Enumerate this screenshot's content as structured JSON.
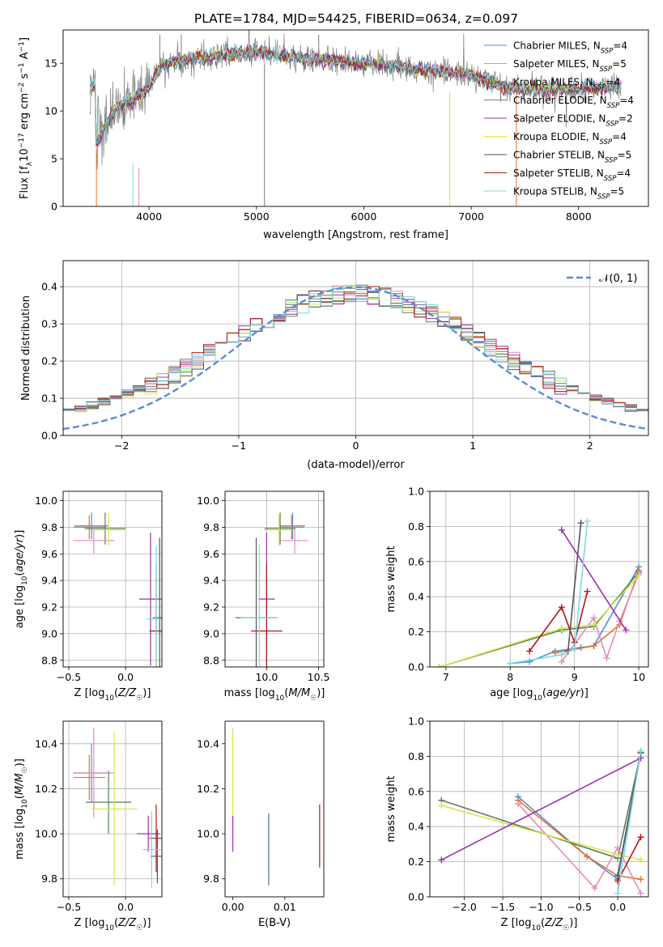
{
  "figure": {
    "title": "PLATE=1784, MJD=54425, FIBERID=0634, z=0.097"
  },
  "series_colors": {
    "Chabrier MILES": "#4a90d9",
    "Salpeter MILES": "#e8722a",
    "Kroupa MILES": "#5a7d5a",
    "Chabrier ELODIE": "#7b7b7b",
    "Salpeter ELODIE": "#9b30b0",
    "Kroupa ELODIE": "#d4e84a",
    "Chabrier STELIB": "#555555",
    "Salpeter STELIB": "#b01818",
    "Kroupa STELIB": "#7fd8e0",
    "pink": "#e88ab8"
  },
  "chart_data": [
    {
      "id": "spectrum",
      "type": "line",
      "title": "PLATE=1784, MJD=54425, FIBERID=0634, z=0.097",
      "xlabel": "wavelength [Angstrom, rest frame]",
      "ylabel": "Flux [f_λ 10^-17 erg cm^-2 s^-1 A^-1]",
      "xlim": [
        3200,
        8650
      ],
      "ylim": [
        0,
        18.5
      ],
      "xticks": [
        4000,
        5000,
        6000,
        7000,
        8000
      ],
      "yticks": [
        0,
        5,
        10,
        15
      ],
      "legend_position": "top-right",
      "legend": [
        {
          "main": "Chabrier MILES, N",
          "sub": "SSP",
          "tail": "=4",
          "color": "#4a90d9"
        },
        {
          "main": "Salpeter MILES, N",
          "sub": "SSP",
          "tail": "=5",
          "color": "#e88ab8"
        },
        {
          "main": "Kroupa MILES, N",
          "sub": "SSP",
          "tail": "=4",
          "color": "#5a7d5a"
        },
        {
          "main": "Chabrier ELODIE, N",
          "sub": "SSP",
          "tail": "=4",
          "color": "#7b7b7b"
        },
        {
          "main": "Salpeter ELODIE, N",
          "sub": "SSP",
          "tail": "=2",
          "color": "#9b30b0"
        },
        {
          "main": "Kroupa ELODIE, N",
          "sub": "SSP",
          "tail": "=4",
          "color": "#d4e84a"
        },
        {
          "main": "Chabrier STELIB, N",
          "sub": "SSP",
          "tail": "=5",
          "color": "#555555"
        },
        {
          "main": "Salpeter STELIB, N",
          "sub": "SSP",
          "tail": "=4",
          "color": "#b01818"
        },
        {
          "main": "Kroupa STELIB, N",
          "sub": "SSP",
          "tail": "=5",
          "color": "#7fd8e0"
        }
      ],
      "continuum": {
        "x": [
          3500,
          3600,
          3700,
          3800,
          3900,
          4000,
          4100,
          4200,
          4400,
          4600,
          4800,
          5000,
          5200,
          5500,
          5800,
          6100,
          6400,
          6700,
          7000,
          7300,
          7600,
          8000,
          8400
        ],
        "y": [
          6.5,
          8.5,
          10.5,
          11.0,
          11.5,
          12.5,
          14.5,
          15.0,
          15.5,
          15.8,
          16.0,
          16.2,
          15.8,
          15.5,
          15.2,
          15.0,
          14.5,
          14.2,
          13.8,
          12.5,
          12.2,
          12.3,
          12.6
        ]
      }
    },
    {
      "id": "residuals",
      "type": "line",
      "xlabel": "(data-model)/error",
      "ylabel": "Normed distribution",
      "xlim": [
        -2.5,
        2.5
      ],
      "ylim": [
        0,
        0.47
      ],
      "xticks": [
        -2,
        -1,
        0,
        1,
        2
      ],
      "yticks": [
        0.0,
        0.1,
        0.2,
        0.3,
        0.4
      ],
      "grid": true,
      "legend_position": "top-right",
      "reference_label": "𝒩(0, 1)",
      "reference_color": "#5b8bd6",
      "bin_width": 0.1
    },
    {
      "id": "Z-age",
      "type": "scatter",
      "xlabel": "Z [log10(Z/Z☉)]",
      "ylabel": "age  [log10(age/yr)]",
      "xlim": [
        -0.55,
        0.32
      ],
      "ylim": [
        8.75,
        10.07
      ],
      "xticks": [
        -0.5,
        0.0
      ],
      "yticks": [
        8.8,
        9.0,
        9.2,
        9.4,
        9.6,
        9.8,
        10.0
      ],
      "grid": true,
      "points": [
        {
          "x": -0.3,
          "y": 9.81,
          "xerr": 0.15,
          "yerr": 0.1,
          "color": "#4a90d9"
        },
        {
          "x": -0.32,
          "y": 9.8,
          "xerr": 0.14,
          "yerr": 0.09,
          "color": "#e8722a"
        },
        {
          "x": -0.18,
          "y": 9.79,
          "xerr": 0.18,
          "yerr": 0.12,
          "color": "#5a7d5a"
        },
        {
          "x": -0.28,
          "y": 9.7,
          "xerr": 0.18,
          "yerr": 0.1,
          "color": "#e88ab8"
        },
        {
          "x": -0.15,
          "y": 9.78,
          "xerr": 0.14,
          "yerr": 0.12,
          "color": "#d4e84a"
        },
        {
          "x": 0.22,
          "y": 9.26,
          "xerr": 0.1,
          "yerr": 0.5,
          "color": "#9b30b0"
        },
        {
          "x": 0.27,
          "y": 9.02,
          "xerr": 0.06,
          "yerr": 0.5,
          "color": "#b01818"
        },
        {
          "x": 0.3,
          "y": 9.12,
          "xerr": 0.06,
          "yerr": 0.6,
          "color": "#555555"
        },
        {
          "x": 0.27,
          "y": 9.11,
          "xerr": 0.09,
          "yerr": 0.55,
          "color": "#7fd8e0"
        }
      ]
    },
    {
      "id": "mass-age",
      "type": "scatter",
      "xlabel": "mass [log10(M/M☉)]",
      "ylabel": "",
      "xlim": [
        9.6,
        10.55
      ],
      "ylim": [
        8.75,
        10.07
      ],
      "xticks": [
        10.0,
        10.5
      ],
      "yticks": [
        8.8,
        9.0,
        9.2,
        9.4,
        9.6,
        9.8,
        10.0
      ],
      "grid": true,
      "points": [
        {
          "x": 10.25,
          "y": 9.81,
          "xerr": 0.12,
          "yerr": 0.1,
          "color": "#4a90d9"
        },
        {
          "x": 10.24,
          "y": 9.8,
          "xerr": 0.12,
          "yerr": 0.09,
          "color": "#e8722a"
        },
        {
          "x": 10.13,
          "y": 9.79,
          "xerr": 0.15,
          "yerr": 0.12,
          "color": "#5a7d5a"
        },
        {
          "x": 10.27,
          "y": 9.7,
          "xerr": 0.13,
          "yerr": 0.1,
          "color": "#e88ab8"
        },
        {
          "x": 10.12,
          "y": 9.78,
          "xerr": 0.15,
          "yerr": 0.12,
          "color": "#d4e84a"
        },
        {
          "x": 10.0,
          "y": 9.26,
          "xerr": 0.08,
          "yerr": 0.5,
          "color": "#9b30b0"
        },
        {
          "x": 10.0,
          "y": 9.02,
          "xerr": 0.15,
          "yerr": 0.5,
          "color": "#b01818"
        },
        {
          "x": 9.9,
          "y": 9.12,
          "xerr": 0.2,
          "yerr": 0.6,
          "color": "#555555"
        },
        {
          "x": 9.93,
          "y": 9.12,
          "xerr": 0.18,
          "yerr": 0.55,
          "color": "#7fd8e0"
        }
      ]
    },
    {
      "id": "age-weight",
      "type": "line",
      "xlabel": "age  [log10(age/yr)]",
      "ylabel": "mass weight",
      "xlim": [
        6.75,
        10.15
      ],
      "ylim": [
        0,
        1.0
      ],
      "xticks": [
        7,
        8,
        9,
        10
      ],
      "yticks": [
        0.0,
        0.2,
        0.4,
        0.6,
        0.8,
        1.0
      ],
      "grid": true,
      "series": [
        {
          "color": "#4a90d9",
          "x": [
            8.0,
            8.3,
            8.7,
            9.1,
            9.3,
            10.0
          ],
          "y": [
            0.02,
            0.03,
            0.09,
            0.11,
            0.12,
            0.57
          ]
        },
        {
          "color": "#e8722a",
          "x": [
            8.7,
            9.0,
            9.3,
            9.7,
            10.0
          ],
          "y": [
            0.08,
            0.1,
            0.12,
            0.24,
            0.55
          ]
        },
        {
          "color": "#5a7d5a",
          "x": [
            6.9,
            8.8,
            9.3,
            10.0
          ],
          "y": [
            0.0,
            0.21,
            0.23,
            0.54
          ]
        },
        {
          "color": "#e88ab8",
          "x": [
            8.8,
            9.3,
            9.5,
            9.7,
            10.0
          ],
          "y": [
            0.03,
            0.28,
            0.05,
            0.26,
            0.53
          ]
        },
        {
          "color": "#d4e84a",
          "x": [
            6.9,
            8.8,
            9.3,
            10.0
          ],
          "y": [
            0.0,
            0.22,
            0.24,
            0.52
          ]
        },
        {
          "color": "#9b30b0",
          "x": [
            8.8,
            9.8
          ],
          "y": [
            0.78,
            0.21
          ]
        },
        {
          "color": "#b01818",
          "x": [
            8.3,
            8.8,
            9.0,
            9.2
          ],
          "y": [
            0.09,
            0.34,
            0.14,
            0.43
          ]
        },
        {
          "color": "#555555",
          "x": [
            8.9,
            9.1
          ],
          "y": [
            0.09,
            0.82
          ]
        },
        {
          "color": "#7fd8e0",
          "x": [
            8.0,
            8.8,
            9.0,
            9.2
          ],
          "y": [
            0.02,
            0.07,
            0.1,
            0.83
          ]
        }
      ]
    },
    {
      "id": "Z-mass",
      "type": "scatter",
      "xlabel": "Z [log10(Z/Z☉)]",
      "ylabel": "mass [log10(M/M☉)]",
      "xlim": [
        -0.55,
        0.32
      ],
      "ylim": [
        9.72,
        10.5
      ],
      "xticks": [
        -0.5,
        0.0
      ],
      "yticks": [
        9.8,
        10.0,
        10.2,
        10.4
      ],
      "grid": true,
      "points": [
        {
          "x": -0.3,
          "y": 10.27,
          "xerr": 0.16,
          "yerr": 0.13,
          "color": "#4a90d9"
        },
        {
          "x": -0.32,
          "y": 10.25,
          "xerr": 0.14,
          "yerr": 0.1,
          "color": "#e8722a"
        },
        {
          "x": -0.15,
          "y": 10.14,
          "xerr": 0.2,
          "yerr": 0.14,
          "color": "#5a7d5a"
        },
        {
          "x": -0.28,
          "y": 10.27,
          "xerr": 0.18,
          "yerr": 0.2,
          "color": "#e88ab8"
        },
        {
          "x": -0.1,
          "y": 10.11,
          "xerr": 0.2,
          "yerr": 0.34,
          "color": "#d4e84a"
        },
        {
          "x": 0.2,
          "y": 10.0,
          "xerr": 0.1,
          "yerr": 0.08,
          "color": "#9b30b0"
        },
        {
          "x": 0.27,
          "y": 9.98,
          "xerr": 0.06,
          "yerr": 0.15,
          "color": "#b01818"
        },
        {
          "x": 0.28,
          "y": 9.9,
          "xerr": 0.06,
          "yerr": 0.12,
          "color": "#555555"
        },
        {
          "x": 0.23,
          "y": 9.93,
          "xerr": 0.08,
          "yerr": 0.17,
          "color": "#7fd8e0"
        }
      ]
    },
    {
      "id": "EBV-mass",
      "type": "scatter",
      "xlabel": "E(B-V)",
      "ylabel": "",
      "xlim": [
        -0.0015,
        0.0175
      ],
      "ylim": [
        9.72,
        10.5
      ],
      "xticks": [
        0.0,
        0.01
      ],
      "yticks": [
        9.8,
        10.0,
        10.2,
        10.4
      ],
      "points": [
        {
          "x": 0.0,
          "y": 10.25,
          "yerr": 0.22,
          "color": "#d4e84a"
        },
        {
          "x": 0.0,
          "y": 10.0,
          "yerr": 0.08,
          "color": "#9b30b0"
        },
        {
          "x": 0.0069,
          "y": 9.95,
          "yerr": 0.14,
          "color": "#7fd8e0"
        },
        {
          "x": 0.0069,
          "y": 9.93,
          "yerr": 0.16,
          "color": "#5a7d5a"
        },
        {
          "x": 0.0167,
          "y": 9.99,
          "yerr": 0.14,
          "color": "#b01818"
        }
      ]
    },
    {
      "id": "Z-weight",
      "type": "line",
      "xlabel": "Z [log10(Z/Z☉)]",
      "ylabel": "mass weight",
      "xlim": [
        -2.45,
        0.4
      ],
      "ylim": [
        0,
        1.0
      ],
      "xticks": [
        -2.0,
        -1.5,
        -1.0,
        -0.5,
        0.0
      ],
      "yticks": [
        0.0,
        0.2,
        0.4,
        0.6,
        0.8,
        1.0
      ],
      "grid": true,
      "series": [
        {
          "color": "#4a90d9",
          "x": [
            -1.3,
            -0.4,
            0.0,
            0.3
          ],
          "y": [
            0.57,
            0.23,
            0.1,
            0.82
          ]
        },
        {
          "color": "#e8722a",
          "x": [
            -1.3,
            -0.4,
            0.0,
            0.3
          ],
          "y": [
            0.55,
            0.23,
            0.12,
            0.1
          ]
        },
        {
          "color": "#5a7d5a",
          "x": [
            -2.3,
            0.0,
            0.3
          ],
          "y": [
            0.55,
            0.22,
            0.82
          ]
        },
        {
          "color": "#e88ab8",
          "x": [
            -1.3,
            -0.3,
            0.0,
            0.3
          ],
          "y": [
            0.53,
            0.05,
            0.28,
            0.02
          ]
        },
        {
          "color": "#d4e84a",
          "x": [
            -2.3,
            0.0,
            0.3
          ],
          "y": [
            0.52,
            0.24,
            0.21
          ]
        },
        {
          "color": "#9b30b0",
          "x": [
            -2.3,
            0.3
          ],
          "y": [
            0.21,
            0.79
          ]
        },
        {
          "color": "#b01818",
          "x": [
            0.0,
            0.3
          ],
          "y": [
            0.09,
            0.34
          ]
        },
        {
          "color": "#555555",
          "x": [
            0.0,
            0.3
          ],
          "y": [
            0.12,
            0.82
          ]
        },
        {
          "color": "#7fd8e0",
          "x": [
            0.0,
            0.3
          ],
          "y": [
            0.02,
            0.83
          ]
        }
      ]
    }
  ]
}
